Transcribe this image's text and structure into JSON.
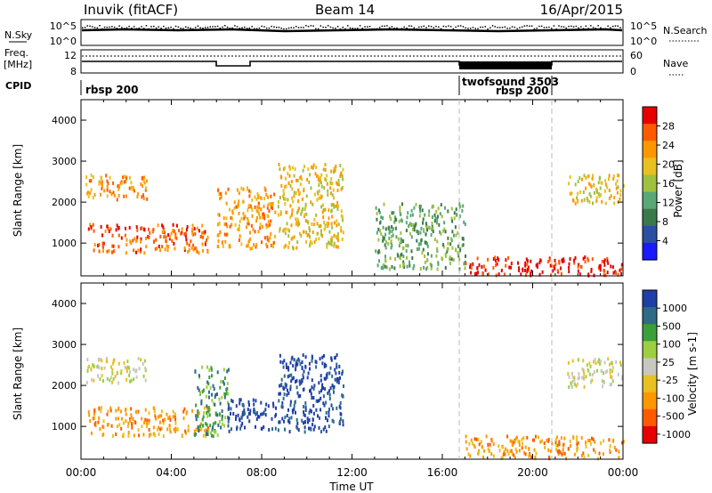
{
  "header": {
    "station": "Inuvik (fitACF)",
    "beam": "Beam 14",
    "date": "16/Apr/2015"
  },
  "top_panels": {
    "nsky_label": "N.Sky",
    "nsky_ticks": [
      "10^5",
      "10^0"
    ],
    "nsearch_label": "N.Search",
    "freq_label": "Freq.",
    "freq_unit": "[MHz]",
    "freq_ticks": [
      "12",
      "8"
    ],
    "nave_ticks": [
      "60",
      "0"
    ],
    "nave_label": "Nave",
    "cpid_label": "CPID",
    "cpid_entries": [
      {
        "label": "rbsp 200",
        "start": "00:00"
      },
      {
        "label": "twofsound 3503",
        "start": "17:00"
      },
      {
        "label": "rbsp 200",
        "start": "21:00"
      }
    ]
  },
  "x_axis": {
    "label": "Time UT",
    "ticks": [
      "00:00",
      "04:00",
      "08:00",
      "12:00",
      "16:00",
      "20:00",
      "00:00"
    ]
  },
  "colors": {
    "power": [
      "#1a1aff",
      "#2d4fa3",
      "#3a7a4a",
      "#59a877",
      "#a0c040",
      "#e8c020",
      "#ff9800",
      "#ff5a00",
      "#e60000"
    ],
    "velocity": [
      "#e60000",
      "#ff5a00",
      "#ff9800",
      "#e8c020",
      "#c8c8c0",
      "#9ecf40",
      "#3aa03a",
      "#2f6a88",
      "#1f3fa8"
    ],
    "frame": "#000000"
  },
  "chart_data": [
    {
      "type": "heatmap",
      "panel": "power",
      "ylabel": "Slant Range [km]",
      "xlabel": "Time UT",
      "ylim": [
        200,
        4500
      ],
      "yticks": [
        1000,
        2000,
        3000,
        4000
      ],
      "colorbar": {
        "label": "Power [dB]",
        "ticks": [
          "28",
          "24",
          "20",
          "16",
          "12",
          "8",
          "4"
        ],
        "range": [
          0,
          32
        ]
      },
      "events": [
        {
          "t0": 0.2,
          "t1": 3.0,
          "r0": 2100,
          "r1": 2700,
          "bin": 6
        },
        {
          "t0": 0.3,
          "t1": 5.6,
          "r0": 800,
          "r1": 1500,
          "bin": 7
        },
        {
          "t0": 6.0,
          "t1": 8.6,
          "r0": 900,
          "r1": 2400,
          "bin": 6
        },
        {
          "t0": 8.7,
          "t1": 11.6,
          "r0": 900,
          "r1": 3000,
          "bin": 5
        },
        {
          "t0": 13.0,
          "t1": 17.0,
          "r0": 400,
          "r1": 2000,
          "bin": 3
        },
        {
          "t0": 17.0,
          "t1": 24.0,
          "r0": 250,
          "r1": 700,
          "bin": 8
        },
        {
          "t0": 21.5,
          "t1": 24.0,
          "r0": 2000,
          "r1": 2700,
          "bin": 5
        }
      ]
    },
    {
      "type": "heatmap",
      "panel": "velocity",
      "ylabel": "Slant Range [km]",
      "xlabel": "Time UT",
      "ylim": [
        200,
        4500
      ],
      "yticks": [
        1000,
        2000,
        3000,
        4000
      ],
      "colorbar": {
        "label": "Velocity [m s-1]",
        "ticks": [
          "1000",
          "500",
          "100",
          "25",
          "-25",
          "-100",
          "-500",
          "-1000"
        ],
        "range": [
          -1250,
          1250
        ]
      },
      "events": [
        {
          "t0": 0.2,
          "t1": 3.0,
          "r0": 2100,
          "r1": 2700,
          "bin": 4
        },
        {
          "t0": 0.3,
          "t1": 5.6,
          "r0": 800,
          "r1": 1500,
          "bin": 2
        },
        {
          "t0": 5.0,
          "t1": 6.5,
          "r0": 800,
          "r1": 2500,
          "bin": 6
        },
        {
          "t0": 6.5,
          "t1": 8.6,
          "r0": 900,
          "r1": 1700,
          "bin": 8
        },
        {
          "t0": 8.7,
          "t1": 11.6,
          "r0": 900,
          "r1": 2800,
          "bin": 8
        },
        {
          "t0": 17.0,
          "t1": 24.0,
          "r0": 250,
          "r1": 800,
          "bin": 2
        },
        {
          "t0": 21.5,
          "t1": 24.0,
          "r0": 2000,
          "r1": 2700,
          "bin": 4
        }
      ]
    }
  ]
}
